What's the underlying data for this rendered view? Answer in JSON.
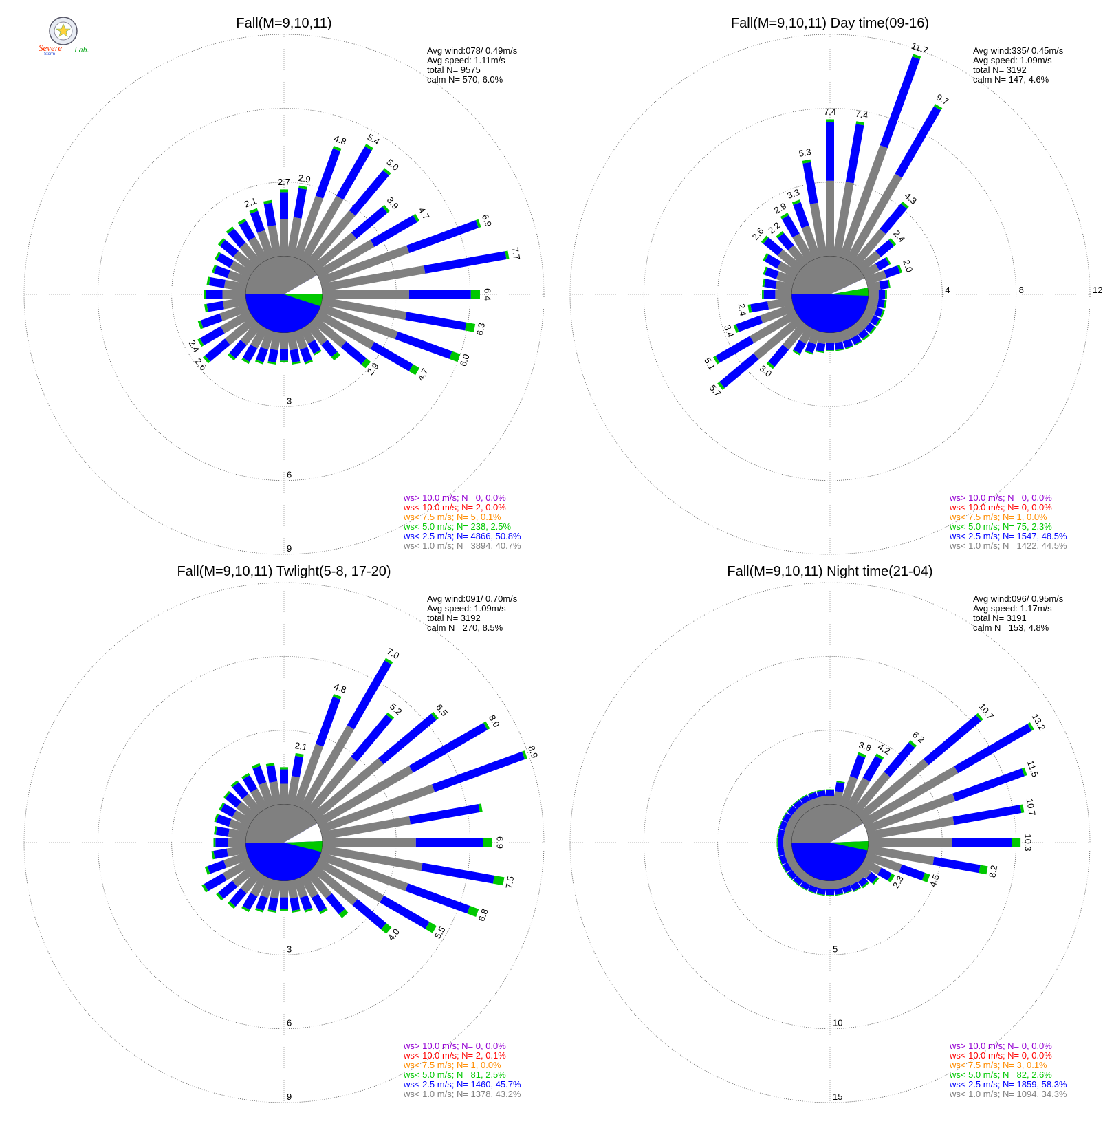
{
  "logo": {
    "text1": "Severe",
    "text2": "Storm",
    "text3": "Lab."
  },
  "colors": {
    "gray": "#808080",
    "blue": "#0000ff",
    "green": "#00c800",
    "orange": "#ff8c00",
    "red": "#ff0000",
    "purple": "#9400d3",
    "calm_text": "#000000"
  },
  "chart_data": [
    {
      "type": "wind-rose",
      "title": "Fall(M=9,10,11)",
      "stats": [
        "Avg wind:078/ 0.49m/s",
        "Avg speed: 1.11m/s",
        "total N=       9575",
        "calm N=     570,   6.0%"
      ],
      "ring_labels": [
        "3",
        "6",
        "9"
      ],
      "ring_max": 9,
      "ring_label_side": "bottom",
      "calm_split_deg": 70,
      "green_start_deg": 90,
      "green_span_deg": 18,
      "sectors": [
        {
          "dir": 0,
          "value": 2.7,
          "label": "2.7"
        },
        {
          "dir": 10,
          "value": 2.9,
          "label": "2.9"
        },
        {
          "dir": 20,
          "value": 4.8,
          "label": "4.8"
        },
        {
          "dir": 30,
          "value": 5.4,
          "label": "5.4"
        },
        {
          "dir": 40,
          "value": 5.0,
          "label": "5.0"
        },
        {
          "dir": 50,
          "value": 3.9,
          "label": "3.9"
        },
        {
          "dir": 60,
          "value": 4.7,
          "label": "4.7"
        },
        {
          "dir": 70,
          "value": 6.9,
          "label": "6.9"
        },
        {
          "dir": 80,
          "value": 7.7,
          "label": "7.7"
        },
        {
          "dir": 90,
          "value": 6.4,
          "label": "6.4"
        },
        {
          "dir": 100,
          "value": 6.3,
          "label": "6.3"
        },
        {
          "dir": 110,
          "value": 6.0,
          "label": "6.0"
        },
        {
          "dir": 120,
          "value": 4.7,
          "label": "4.7"
        },
        {
          "dir": 130,
          "value": 2.9,
          "label": "2.9"
        },
        {
          "dir": 140,
          "value": 1.8,
          "label": ""
        },
        {
          "dir": 150,
          "value": 1.2,
          "label": ""
        },
        {
          "dir": 160,
          "value": 1.4,
          "label": ""
        },
        {
          "dir": 170,
          "value": 1.3,
          "label": ""
        },
        {
          "dir": 180,
          "value": 1.2,
          "label": ""
        },
        {
          "dir": 190,
          "value": 1.3,
          "label": ""
        },
        {
          "dir": 200,
          "value": 1.4,
          "label": ""
        },
        {
          "dir": 210,
          "value": 1.6,
          "label": ""
        },
        {
          "dir": 220,
          "value": 1.8,
          "label": ""
        },
        {
          "dir": 230,
          "value": 2.6,
          "label": "2.6"
        },
        {
          "dir": 240,
          "value": 2.4,
          "label": "2.4"
        },
        {
          "dir": 250,
          "value": 2.1,
          "label": ""
        },
        {
          "dir": 260,
          "value": 1.7,
          "label": ""
        },
        {
          "dir": 270,
          "value": 1.7,
          "label": ""
        },
        {
          "dir": 280,
          "value": 1.6,
          "label": ""
        },
        {
          "dir": 290,
          "value": 1.5,
          "label": ""
        },
        {
          "dir": 300,
          "value": 1.6,
          "label": ""
        },
        {
          "dir": 310,
          "value": 1.8,
          "label": ""
        },
        {
          "dir": 320,
          "value": 1.9,
          "label": ""
        },
        {
          "dir": 330,
          "value": 1.9,
          "label": ""
        },
        {
          "dir": 340,
          "value": 2.1,
          "label": "2.1"
        },
        {
          "dir": 350,
          "value": 2.3,
          "label": ""
        }
      ],
      "legend": [
        {
          "text": "ws> 10.0 m/s; N=     0,   0.0%",
          "color": "purple"
        },
        {
          "text": "ws< 10.0 m/s; N=     2,   0.0%",
          "color": "red"
        },
        {
          "text": "ws<  7.5 m/s; N=     5,   0.1%",
          "color": "orange"
        },
        {
          "text": "ws<  5.0 m/s; N=   238,   2.5%",
          "color": "green"
        },
        {
          "text": "ws<  2.5 m/s; N=  4866, 50.8%",
          "color": "blue"
        },
        {
          "text": "ws<  1.0 m/s; N=  3894, 40.7%",
          "color": "gray"
        }
      ]
    },
    {
      "type": "wind-rose",
      "title": "Fall(M=9,10,11) Day time(09-16)",
      "stats": [
        "Avg wind:335/ 0.45m/s",
        "Avg speed: 1.09m/s",
        "total N=       3192",
        "calm N=     147,   4.6%"
      ],
      "ring_labels": [
        "4",
        "8",
        "12"
      ],
      "ring_max": 12,
      "ring_label_side": "right",
      "calm_split_deg": 75,
      "green_start_deg": 80,
      "green_span_deg": 12,
      "sectors": [
        {
          "dir": 0,
          "value": 7.4,
          "label": "7.4"
        },
        {
          "dir": 10,
          "value": 7.4,
          "label": "7.4"
        },
        {
          "dir": 20,
          "value": 11.7,
          "label": "11.7"
        },
        {
          "dir": 30,
          "value": 9.7,
          "label": "9.7"
        },
        {
          "dir": 40,
          "value": 4.3,
          "label": "4.3"
        },
        {
          "dir": 50,
          "value": 2.4,
          "label": "2.4"
        },
        {
          "dir": 60,
          "value": 1.6,
          "label": ""
        },
        {
          "dir": 70,
          "value": 2.0,
          "label": "2.0"
        },
        {
          "dir": 80,
          "value": 1.2,
          "label": ""
        },
        {
          "dir": 90,
          "value": 1.0,
          "label": ""
        },
        {
          "dir": 100,
          "value": 1.0,
          "label": ""
        },
        {
          "dir": 110,
          "value": 1.0,
          "label": ""
        },
        {
          "dir": 120,
          "value": 1.0,
          "label": ""
        },
        {
          "dir": 130,
          "value": 1.0,
          "label": ""
        },
        {
          "dir": 140,
          "value": 1.0,
          "label": ""
        },
        {
          "dir": 150,
          "value": 1.0,
          "label": ""
        },
        {
          "dir": 160,
          "value": 1.0,
          "label": ""
        },
        {
          "dir": 170,
          "value": 1.0,
          "label": ""
        },
        {
          "dir": 180,
          "value": 1.0,
          "label": ""
        },
        {
          "dir": 190,
          "value": 1.1,
          "label": ""
        },
        {
          "dir": 200,
          "value": 1.3,
          "label": ""
        },
        {
          "dir": 210,
          "value": 1.6,
          "label": ""
        },
        {
          "dir": 220,
          "value": 3.0,
          "label": "3.0"
        },
        {
          "dir": 230,
          "value": 5.7,
          "label": "5.7"
        },
        {
          "dir": 240,
          "value": 5.1,
          "label": "5.1"
        },
        {
          "dir": 250,
          "value": 3.4,
          "label": "3.4"
        },
        {
          "dir": 260,
          "value": 2.4,
          "label": "2.4"
        },
        {
          "dir": 270,
          "value": 1.6,
          "label": ""
        },
        {
          "dir": 280,
          "value": 1.6,
          "label": ""
        },
        {
          "dir": 290,
          "value": 1.7,
          "label": ""
        },
        {
          "dir": 300,
          "value": 2.0,
          "label": ""
        },
        {
          "dir": 310,
          "value": 2.6,
          "label": "2.6"
        },
        {
          "dir": 320,
          "value": 2.2,
          "label": "2.2"
        },
        {
          "dir": 330,
          "value": 2.9,
          "label": "2.9"
        },
        {
          "dir": 340,
          "value": 3.3,
          "label": "3.3"
        },
        {
          "dir": 350,
          "value": 5.3,
          "label": "5.3"
        }
      ],
      "legend": [
        {
          "text": "ws> 10.0 m/s; N=     0,   0.0%",
          "color": "purple"
        },
        {
          "text": "ws< 10.0 m/s; N=     0,   0.0%",
          "color": "red"
        },
        {
          "text": "ws<  7.5 m/s; N=     1,   0.0%",
          "color": "orange"
        },
        {
          "text": "ws<  5.0 m/s; N=    75,   2.3%",
          "color": "green"
        },
        {
          "text": "ws<  2.5 m/s; N=  1547, 48.5%",
          "color": "blue"
        },
        {
          "text": "ws<  1.0 m/s; N=  1422, 44.5%",
          "color": "gray"
        }
      ]
    },
    {
      "type": "wind-rose",
      "title": "Fall(M=9,10,11) Twlight(5-8, 17-20)",
      "stats": [
        "Avg wind:091/ 0.70m/s",
        "Avg speed: 1.09m/s",
        "total N=       3192",
        "calm N=     270,   8.5%"
      ],
      "ring_labels": [
        "3",
        "6",
        "9"
      ],
      "ring_max": 9,
      "ring_label_side": "bottom",
      "calm_split_deg": 70,
      "green_start_deg": 88,
      "green_span_deg": 16,
      "sectors": [
        {
          "dir": 0,
          "value": 1.5,
          "label": ""
        },
        {
          "dir": 10,
          "value": 2.1,
          "label": "2.1"
        },
        {
          "dir": 20,
          "value": 4.8,
          "label": "4.8"
        },
        {
          "dir": 30,
          "value": 7.0,
          "label": "7.0"
        },
        {
          "dir": 40,
          "value": 5.2,
          "label": "5.2"
        },
        {
          "dir": 50,
          "value": 6.5,
          "label": "6.5"
        },
        {
          "dir": 60,
          "value": 8.0,
          "label": "8.0"
        },
        {
          "dir": 70,
          "value": 8.9,
          "label": "8.9"
        },
        {
          "dir": 80,
          "value": 6.6,
          "label": ""
        },
        {
          "dir": 90,
          "value": 6.9,
          "label": "6.9"
        },
        {
          "dir": 100,
          "value": 7.5,
          "label": "7.5"
        },
        {
          "dir": 110,
          "value": 6.8,
          "label": "6.8"
        },
        {
          "dir": 120,
          "value": 5.5,
          "label": "5.5"
        },
        {
          "dir": 130,
          "value": 4.0,
          "label": "4.0"
        },
        {
          "dir": 140,
          "value": 2.3,
          "label": ""
        },
        {
          "dir": 150,
          "value": 1.7,
          "label": ""
        },
        {
          "dir": 160,
          "value": 1.4,
          "label": ""
        },
        {
          "dir": 170,
          "value": 1.3,
          "label": ""
        },
        {
          "dir": 180,
          "value": 1.2,
          "label": ""
        },
        {
          "dir": 190,
          "value": 1.3,
          "label": ""
        },
        {
          "dir": 200,
          "value": 1.4,
          "label": ""
        },
        {
          "dir": 210,
          "value": 1.6,
          "label": ""
        },
        {
          "dir": 220,
          "value": 1.8,
          "label": ""
        },
        {
          "dir": 230,
          "value": 1.9,
          "label": ""
        },
        {
          "dir": 240,
          "value": 2.2,
          "label": ""
        },
        {
          "dir": 250,
          "value": 1.8,
          "label": ""
        },
        {
          "dir": 260,
          "value": 1.4,
          "label": ""
        },
        {
          "dir": 270,
          "value": 1.3,
          "label": ""
        },
        {
          "dir": 280,
          "value": 1.3,
          "label": ""
        },
        {
          "dir": 290,
          "value": 1.4,
          "label": ""
        },
        {
          "dir": 300,
          "value": 1.4,
          "label": ""
        },
        {
          "dir": 310,
          "value": 1.5,
          "label": ""
        },
        {
          "dir": 320,
          "value": 1.6,
          "label": ""
        },
        {
          "dir": 330,
          "value": 1.6,
          "label": ""
        },
        {
          "dir": 340,
          "value": 1.8,
          "label": ""
        },
        {
          "dir": 350,
          "value": 1.7,
          "label": ""
        }
      ],
      "legend": [
        {
          "text": "ws> 10.0 m/s; N=     0,   0.0%",
          "color": "purple"
        },
        {
          "text": "ws< 10.0 m/s; N=     2,   0.1%",
          "color": "red"
        },
        {
          "text": "ws<  7.5 m/s; N=     1,   0.0%",
          "color": "orange"
        },
        {
          "text": "ws<  5.0 m/s; N=    81,   2.5%",
          "color": "green"
        },
        {
          "text": "ws<  2.5 m/s; N=  1460, 45.7%",
          "color": "blue"
        },
        {
          "text": "ws<  1.0 m/s; N=  1378, 43.2%",
          "color": "gray"
        }
      ]
    },
    {
      "type": "wind-rose",
      "title": "Fall(M=9,10,11) Night time(21-04)",
      "stats": [
        "Avg wind:096/ 0.95m/s",
        "Avg speed: 1.17m/s",
        "total N=       3191",
        "calm N=     153,   4.8%"
      ],
      "ring_labels": [
        "5",
        "10",
        "15"
      ],
      "ring_max": 15,
      "ring_label_side": "bottom",
      "calm_split_deg": 70,
      "green_start_deg": 88,
      "green_span_deg": 14,
      "sectors": [
        {
          "dir": 0,
          "value": 1.0,
          "label": ""
        },
        {
          "dir": 10,
          "value": 1.6,
          "label": ""
        },
        {
          "dir": 20,
          "value": 3.8,
          "label": "3.8"
        },
        {
          "dir": 30,
          "value": 4.2,
          "label": "4.2"
        },
        {
          "dir": 40,
          "value": 6.2,
          "label": "6.2"
        },
        {
          "dir": 50,
          "value": 10.7,
          "label": "10.7"
        },
        {
          "dir": 60,
          "value": 13.2,
          "label": "13.2"
        },
        {
          "dir": 70,
          "value": 11.5,
          "label": "11.5"
        },
        {
          "dir": 80,
          "value": 10.7,
          "label": "10.7"
        },
        {
          "dir": 90,
          "value": 10.3,
          "label": "10.3"
        },
        {
          "dir": 100,
          "value": 8.2,
          "label": "8.2"
        },
        {
          "dir": 110,
          "value": 4.5,
          "label": "4.5"
        },
        {
          "dir": 120,
          "value": 2.3,
          "label": "2.3"
        },
        {
          "dir": 130,
          "value": 1.5,
          "label": ""
        },
        {
          "dir": 140,
          "value": 1.2,
          "label": ""
        },
        {
          "dir": 150,
          "value": 1.1,
          "label": ""
        },
        {
          "dir": 160,
          "value": 1.0,
          "label": ""
        },
        {
          "dir": 170,
          "value": 1.0,
          "label": ""
        },
        {
          "dir": 180,
          "value": 1.0,
          "label": ""
        },
        {
          "dir": 190,
          "value": 1.0,
          "label": ""
        },
        {
          "dir": 200,
          "value": 1.0,
          "label": ""
        },
        {
          "dir": 210,
          "value": 1.0,
          "label": ""
        },
        {
          "dir": 220,
          "value": 1.0,
          "label": ""
        },
        {
          "dir": 230,
          "value": 1.0,
          "label": ""
        },
        {
          "dir": 240,
          "value": 1.0,
          "label": ""
        },
        {
          "dir": 250,
          "value": 1.0,
          "label": ""
        },
        {
          "dir": 260,
          "value": 1.0,
          "label": ""
        },
        {
          "dir": 270,
          "value": 1.0,
          "label": ""
        },
        {
          "dir": 280,
          "value": 1.0,
          "label": ""
        },
        {
          "dir": 290,
          "value": 1.0,
          "label": ""
        },
        {
          "dir": 300,
          "value": 1.0,
          "label": ""
        },
        {
          "dir": 310,
          "value": 1.0,
          "label": ""
        },
        {
          "dir": 320,
          "value": 1.0,
          "label": ""
        },
        {
          "dir": 330,
          "value": 1.0,
          "label": ""
        },
        {
          "dir": 340,
          "value": 1.0,
          "label": ""
        },
        {
          "dir": 350,
          "value": 1.0,
          "label": ""
        }
      ],
      "legend": [
        {
          "text": "ws> 10.0 m/s; N=     0,   0.0%",
          "color": "purple"
        },
        {
          "text": "ws< 10.0 m/s; N=     0,   0.0%",
          "color": "red"
        },
        {
          "text": "ws<  7.5 m/s; N=     3,   0.1%",
          "color": "orange"
        },
        {
          "text": "ws<  5.0 m/s; N=    82,   2.6%",
          "color": "green"
        },
        {
          "text": "ws<  2.5 m/s; N=  1859, 58.3%",
          "color": "blue"
        },
        {
          "text": "ws<  1.0 m/s; N=  1094, 34.3%",
          "color": "gray"
        }
      ]
    }
  ]
}
